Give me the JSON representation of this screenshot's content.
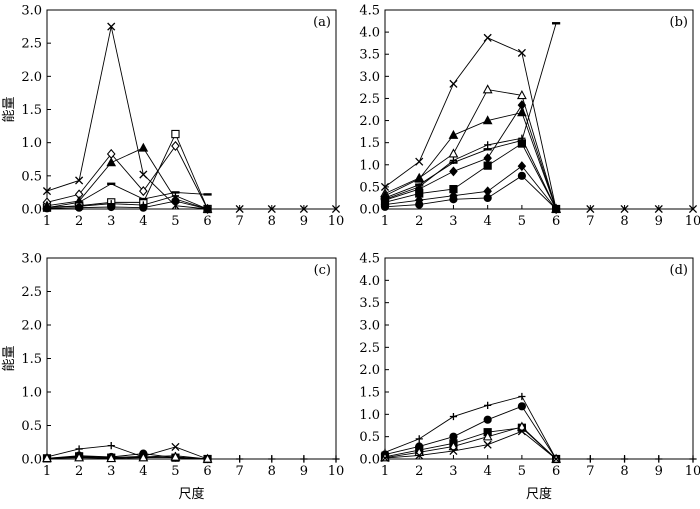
{
  "chart_data": [
    {
      "type": "line",
      "panel_label": "(a)",
      "ylabel": "能量",
      "xlabel": "",
      "xlim": [
        1,
        10
      ],
      "ylim": [
        0,
        3.0
      ],
      "xticks": [
        "1",
        "2",
        "3",
        "4",
        "5",
        "6",
        "7",
        "8",
        "9",
        "10"
      ],
      "yticks": [
        "0.0",
        "0.5",
        "1.0",
        "1.5",
        "2.0",
        "2.5",
        "3.0"
      ],
      "grid": false,
      "series": [
        {
          "marker": "x",
          "x": [
            1,
            2,
            3,
            4,
            5,
            6,
            7,
            8,
            9,
            10
          ],
          "values": [
            0.27,
            0.43,
            2.75,
            0.52,
            0.05,
            0,
            0,
            0,
            0,
            0
          ]
        },
        {
          "marker": "diamond-open",
          "x": [
            1,
            2,
            3,
            4,
            5,
            6
          ],
          "values": [
            0.1,
            0.22,
            0.83,
            0.27,
            0.95,
            0
          ]
        },
        {
          "marker": "triangle-filled",
          "x": [
            1,
            2,
            3,
            4,
            5,
            6
          ],
          "values": [
            0.05,
            0.12,
            0.7,
            0.92,
            0.15,
            0
          ]
        },
        {
          "marker": "square-open",
          "x": [
            1,
            2,
            3,
            4,
            5,
            6
          ],
          "values": [
            0.02,
            0.05,
            0.1,
            0.1,
            1.13,
            0
          ]
        },
        {
          "marker": "dash",
          "x": [
            1,
            2,
            3,
            4,
            5,
            6
          ],
          "values": [
            0.02,
            0.1,
            0.38,
            0.15,
            0.25,
            0.22
          ]
        },
        {
          "marker": "plus",
          "x": [
            1,
            2,
            3,
            4,
            5,
            6
          ],
          "values": [
            0.03,
            0.04,
            0.08,
            0.06,
            0.2,
            0
          ]
        },
        {
          "marker": "circle-filled",
          "x": [
            1,
            2,
            3,
            4,
            5,
            6
          ],
          "values": [
            0.01,
            0.02,
            0.03,
            0.02,
            0.12,
            0
          ]
        }
      ]
    },
    {
      "type": "line",
      "panel_label": "(b)",
      "ylabel": "",
      "xlabel": "",
      "xlim": [
        1,
        10
      ],
      "ylim": [
        0,
        4.5
      ],
      "xticks": [
        "1",
        "2",
        "3",
        "4",
        "5",
        "6",
        "7",
        "8",
        "9",
        "10"
      ],
      "yticks": [
        "0.0",
        "0.5",
        "1.0",
        "1.5",
        "2.0",
        "2.5",
        "3.0",
        "3.5",
        "4.0",
        "4.5"
      ],
      "grid": false,
      "series": [
        {
          "marker": "x",
          "x": [
            1,
            2,
            3,
            4,
            5,
            6,
            7,
            8,
            9,
            10
          ],
          "values": [
            0.5,
            1.07,
            2.83,
            3.87,
            3.53,
            0,
            0,
            0,
            0,
            0
          ]
        },
        {
          "marker": "dash",
          "x": [
            1,
            2,
            3,
            4,
            5,
            6
          ],
          "values": [
            0.25,
            0.55,
            1.05,
            1.35,
            1.55,
            4.2
          ]
        },
        {
          "marker": "triangle-open",
          "x": [
            1,
            2,
            3,
            4,
            5,
            6
          ],
          "values": [
            0.35,
            0.7,
            1.25,
            2.7,
            2.57,
            0
          ]
        },
        {
          "marker": "triangle-filled",
          "x": [
            1,
            2,
            3,
            4,
            5,
            6
          ],
          "values": [
            0.3,
            0.68,
            1.67,
            2.0,
            2.18,
            0
          ]
        },
        {
          "marker": "diamond-filled",
          "x": [
            1,
            2,
            3,
            4,
            5,
            6
          ],
          "values": [
            0.2,
            0.45,
            0.85,
            1.15,
            2.35,
            0
          ]
        },
        {
          "marker": "plus",
          "x": [
            1,
            2,
            3,
            4,
            5,
            6
          ],
          "values": [
            0.22,
            0.5,
            1.1,
            1.45,
            1.6,
            0
          ]
        },
        {
          "marker": "square-filled",
          "x": [
            1,
            2,
            3,
            4,
            5,
            6
          ],
          "values": [
            0.15,
            0.35,
            0.45,
            0.98,
            1.48,
            0
          ]
        },
        {
          "marker": "diamond-filled",
          "x": [
            1,
            2,
            3,
            4,
            5,
            6
          ],
          "values": [
            0.1,
            0.2,
            0.3,
            0.4,
            0.97,
            0
          ]
        },
        {
          "marker": "circle-filled",
          "x": [
            1,
            2,
            3,
            4,
            5,
            6
          ],
          "values": [
            0.05,
            0.1,
            0.22,
            0.25,
            0.75,
            0
          ]
        }
      ]
    },
    {
      "type": "line",
      "panel_label": "(c)",
      "ylabel": "能量",
      "xlabel": "尺度",
      "xlim": [
        1,
        10
      ],
      "ylim": [
        0,
        3.0
      ],
      "xticks": [
        "1",
        "2",
        "3",
        "4",
        "5",
        "6",
        "7",
        "8",
        "9",
        "10"
      ],
      "yticks": [
        "0.0",
        "0.5",
        "1.0",
        "1.5",
        "2.0",
        "2.5",
        "3.0"
      ],
      "grid": false,
      "series": [
        {
          "marker": "plus",
          "x": [
            1,
            2,
            3,
            4,
            5,
            6,
            7,
            8,
            9,
            10
          ],
          "values": [
            0.03,
            0.15,
            0.2,
            0.03,
            0.05,
            0,
            0,
            0,
            0,
            0
          ]
        },
        {
          "marker": "x",
          "x": [
            1,
            2,
            3,
            4,
            5,
            6
          ],
          "values": [
            0.01,
            0.03,
            0.02,
            0.04,
            0.18,
            0
          ]
        },
        {
          "marker": "circle-filled",
          "x": [
            1,
            2,
            3,
            4,
            5,
            6
          ],
          "values": [
            0.01,
            0.05,
            0.03,
            0.08,
            0.02,
            0
          ]
        },
        {
          "marker": "square-filled",
          "x": [
            1,
            2,
            3,
            4,
            5,
            6
          ],
          "values": [
            0.01,
            0.04,
            0.02,
            0.03,
            0.02,
            0
          ]
        },
        {
          "marker": "triangle-open",
          "x": [
            1,
            2,
            3,
            4,
            5,
            6
          ],
          "values": [
            0.01,
            0.02,
            0.01,
            0.02,
            0.03,
            0
          ]
        }
      ]
    },
    {
      "type": "line",
      "panel_label": "(d)",
      "ylabel": "",
      "xlabel": "尺度",
      "xlim": [
        1,
        10
      ],
      "ylim": [
        0,
        4.5
      ],
      "xticks": [
        "1",
        "2",
        "3",
        "4",
        "5",
        "6",
        "7",
        "8",
        "9",
        "10"
      ],
      "yticks": [
        "0.0",
        "0.5",
        "1.0",
        "1.5",
        "2.0",
        "2.5",
        "3.0",
        "3.5",
        "4.0",
        "4.5"
      ],
      "grid": false,
      "series": [
        {
          "marker": "plus",
          "x": [
            1,
            2,
            3,
            4,
            5,
            6,
            7,
            8,
            9,
            10
          ],
          "values": [
            0.15,
            0.45,
            0.95,
            1.2,
            1.4,
            0,
            0,
            0,
            0,
            0
          ]
        },
        {
          "marker": "circle-filled",
          "x": [
            1,
            2,
            3,
            4,
            5,
            6
          ],
          "values": [
            0.1,
            0.28,
            0.5,
            0.88,
            1.18,
            0
          ]
        },
        {
          "marker": "square-filled",
          "x": [
            1,
            2,
            3,
            4,
            5,
            6
          ],
          "values": [
            0.05,
            0.2,
            0.35,
            0.6,
            0.7,
            0
          ]
        },
        {
          "marker": "triangle-open",
          "x": [
            1,
            2,
            3,
            4,
            5,
            6
          ],
          "values": [
            0.03,
            0.15,
            0.28,
            0.5,
            0.72,
            0
          ]
        },
        {
          "marker": "x",
          "x": [
            1,
            2,
            3,
            4,
            5,
            6
          ],
          "values": [
            0.02,
            0.08,
            0.18,
            0.32,
            0.62,
            0
          ]
        }
      ]
    }
  ]
}
